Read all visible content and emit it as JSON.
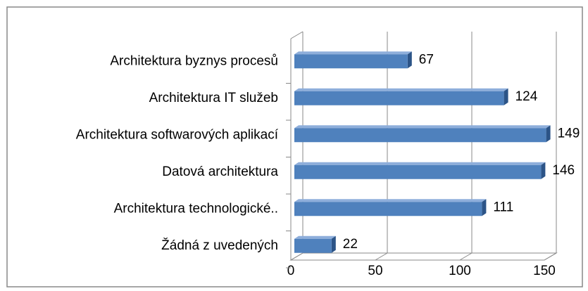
{
  "chart_data": {
    "type": "bar3d",
    "categories": [
      "Architektura byznys procesů",
      "Architektura IT služeb",
      "Architektura softwarových aplikací",
      "Datová architektura",
      "Architektura technologické..",
      "Žádná z uvedených"
    ],
    "values": [
      67,
      124,
      149,
      146,
      111,
      22
    ],
    "color": "#4f81bd",
    "xlim": [
      0,
      150
    ],
    "xticks": [
      0,
      50,
      100,
      150
    ],
    "grid": true
  }
}
